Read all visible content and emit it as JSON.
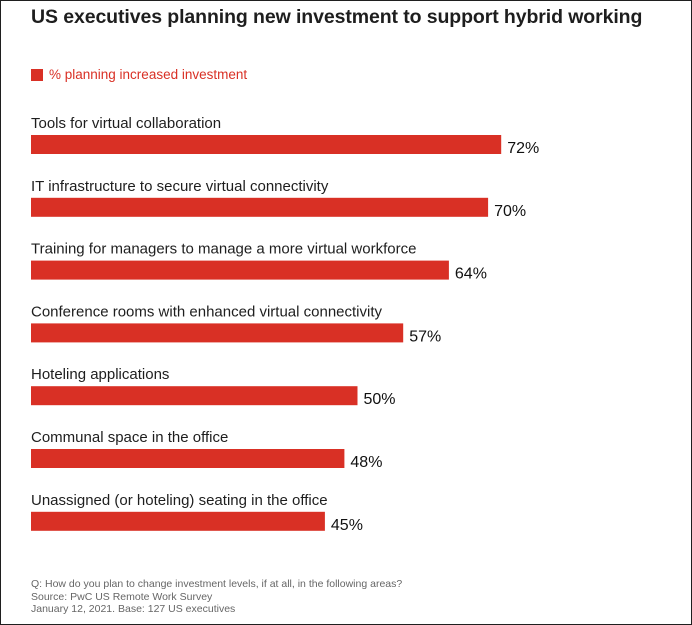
{
  "colors": {
    "bar": "#d93025",
    "legend_text": "#d93025",
    "title": "#1e1e1e",
    "footnote": "#666666"
  },
  "chart_data": {
    "type": "bar",
    "orientation": "horizontal",
    "title": "US executives planning new investment to support hybrid working",
    "legend_position": "top-left",
    "grid": false,
    "xlim": [
      0,
      100
    ],
    "series": [
      {
        "name": "% planning increased investment",
        "values": [
          72,
          70,
          64,
          57,
          50,
          48,
          45
        ]
      }
    ],
    "categories": [
      "Tools for virtual collaboration",
      "IT infrastructure to secure virtual connectivity",
      "Training for managers to manage a more virtual workforce",
      "Conference rooms with enhanced virtual connectivity",
      "Hoteling applications",
      "Communal space in the office",
      "Unassigned (or hoteling) seating in the office"
    ],
    "value_labels": [
      "72%",
      "70%",
      "64%",
      "57%",
      "50%",
      "48%",
      "45%"
    ]
  },
  "footnote": {
    "question": "Q: How do you plan to change investment levels, if at all, in the following areas?",
    "source": "Source: PwC US Remote Work Survey",
    "date_base": "January 12, 2021. Base: 127 US executives"
  }
}
